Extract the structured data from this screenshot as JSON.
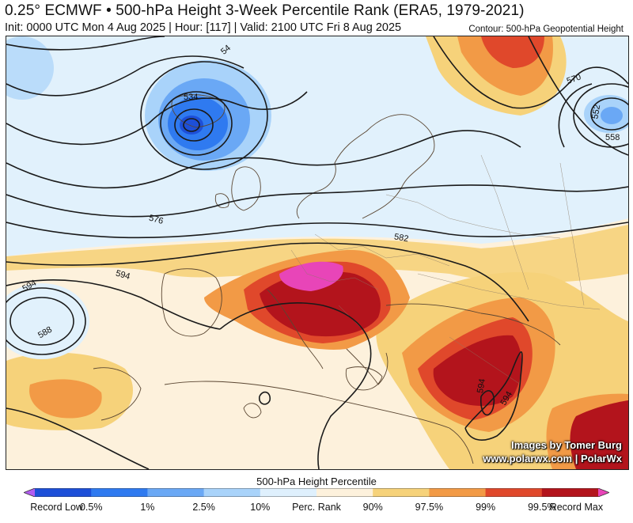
{
  "header": {
    "title": "0.25° ECMWF • 500-hPa Height 3-Week Percentile Rank (ERA5, 1979-2021)",
    "subtitle": "Init: 0000 UTC Mon 4 Aug 2025 | Hour: [117] | Valid: 2100 UTC Fri 8 Aug 2025",
    "contour_note": "Contour: 500-hPa Geopotential Height"
  },
  "map": {
    "contour_labels": [
      "534",
      "552",
      "558",
      "570",
      "576",
      "582",
      "594",
      "588",
      "594",
      "594",
      "594",
      "54"
    ],
    "credit_line1": "Images by Tomer Burg",
    "credit_line2": "www.polarwx.com | PolarWx"
  },
  "legend": {
    "title": "500-hPa Height Percentile",
    "labels": [
      "Record Low",
      "0.5%",
      "1%",
      "2.5%",
      "10%",
      "Perc. Rank",
      "90%",
      "97.5%",
      "99%",
      "99.5%",
      "Record Max"
    ],
    "colors": [
      "#b15cf0",
      "#1d4fd8",
      "#2f7af0",
      "#6aa8f5",
      "#a9d3fa",
      "#dff0fd",
      "#fdf1dc",
      "#f6d27a",
      "#f29a46",
      "#e0482b",
      "#b3141c",
      "#e845b8"
    ]
  }
}
